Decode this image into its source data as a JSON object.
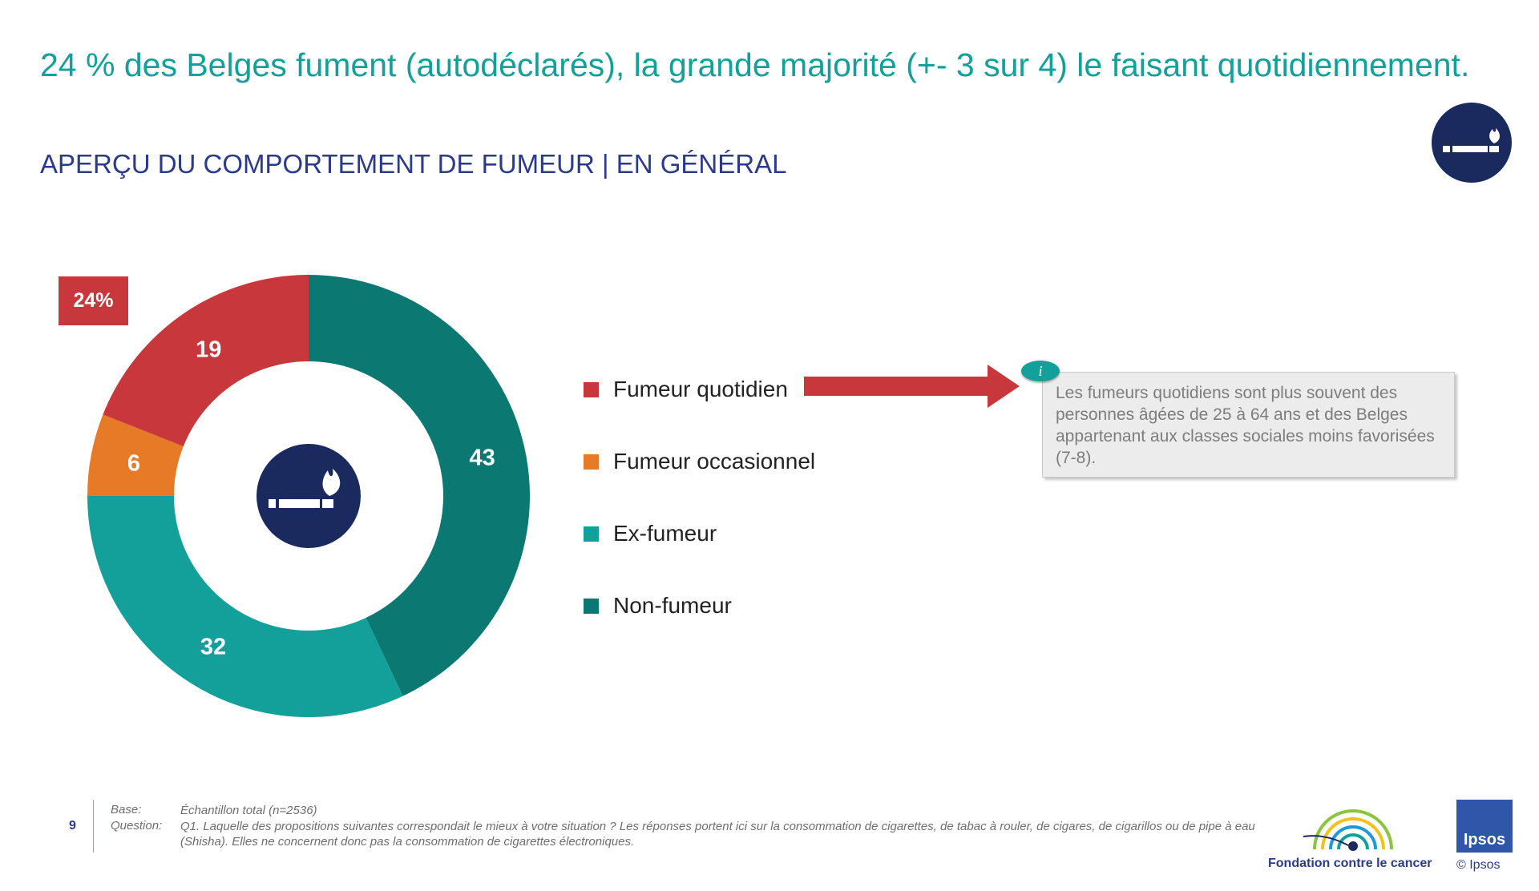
{
  "page": {
    "title": "24 % des Belges fument (autodéclarés), la grande majorité (+- 3 sur 4) le faisant quotidiennement.",
    "subtitle": "APERÇU DU COMPORTEMENT DE FUMEUR | EN GÉNÉRAL",
    "corner_icon": "smoking-icon"
  },
  "chart_data": {
    "type": "pie",
    "variant": "donut",
    "categories": [
      "Fumeur quotidien",
      "Fumeur occasionnel",
      "Ex-fumeur",
      "Non-fumeur"
    ],
    "values": [
      19,
      6,
      32,
      43
    ],
    "value_labels": [
      "19",
      "6",
      "32",
      "43"
    ],
    "colors": [
      "#c8373b",
      "#e67a27",
      "#14a09a",
      "#0b7872"
    ],
    "legend_position": "right",
    "badge": "24%",
    "center_icon": "smoking-icon",
    "title": ""
  },
  "callout": {
    "icon": "info-icon",
    "icon_label": "i",
    "text": "Les fumeurs quotidiens sont plus souvent des personnes âgées de 25 à 64 ans et des Belges appartenant aux classes sociales moins favorisées (7-8).",
    "arrow_color": "#c8373b"
  },
  "footer": {
    "page_number": "9",
    "base_label": "Base:",
    "base_text": "Échantillon total (n=2536)",
    "question_label": "Question:",
    "question_text": "Q1. Laquelle des propositions suivantes correspondait le mieux à votre situation ? Les réponses portent ici sur la consommation de cigarettes, de tabac à rouler, de cigares, de cigarillos ou de pipe à eau (Shisha). Elles ne concernent donc pas la consommation de cigarettes électroniques.",
    "fondation_name": "Fondation contre le cancer",
    "ipsos_logo_text": "Ipsos",
    "copyright": "© Ipsos"
  }
}
